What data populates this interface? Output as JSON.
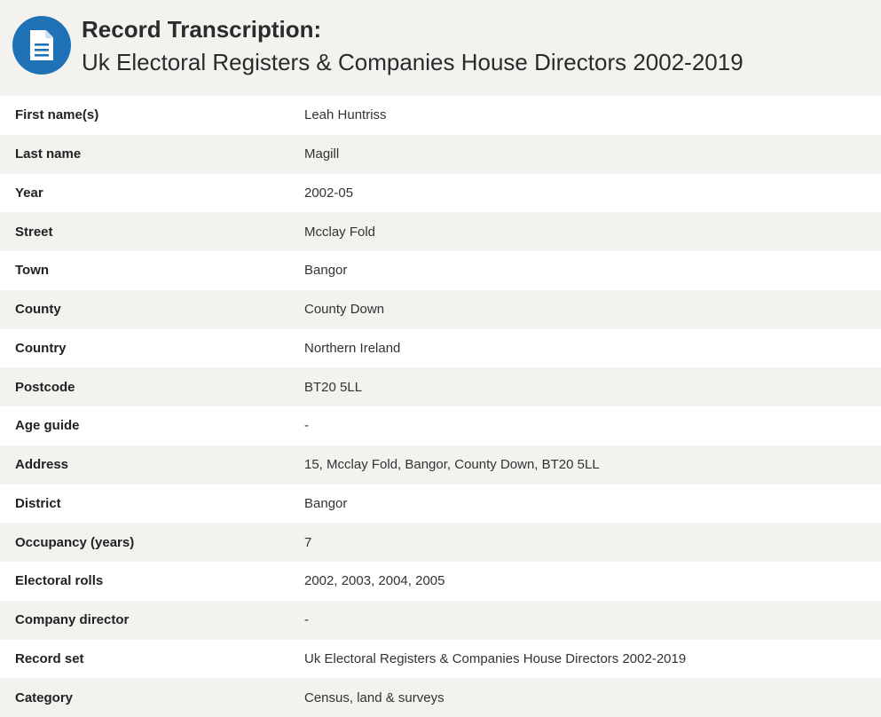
{
  "header": {
    "icon": "document-icon",
    "accent_color": "#1f72b5",
    "title": "Record Transcription:",
    "subtitle": "Uk Electoral Registers & Companies House Directors 2002-2019"
  },
  "record": {
    "rows": [
      {
        "label": "First name(s)",
        "value": "Leah Huntriss"
      },
      {
        "label": "Last name",
        "value": "Magill"
      },
      {
        "label": "Year",
        "value": "2002-05"
      },
      {
        "label": "Street",
        "value": "Mcclay Fold"
      },
      {
        "label": "Town",
        "value": "Bangor"
      },
      {
        "label": "County",
        "value": "County Down"
      },
      {
        "label": "Country",
        "value": "Northern Ireland"
      },
      {
        "label": "Postcode",
        "value": "BT20 5LL"
      },
      {
        "label": "Age guide",
        "value": "-"
      },
      {
        "label": "Address",
        "value": "15, Mcclay Fold, Bangor, County Down, BT20 5LL"
      },
      {
        "label": "District",
        "value": "Bangor"
      },
      {
        "label": "Occupancy (years)",
        "value": "7"
      },
      {
        "label": "Electoral rolls",
        "value": "2002, 2003, 2004, 2005"
      },
      {
        "label": "Company director",
        "value": "-"
      },
      {
        "label": "Record set",
        "value": "Uk Electoral Registers & Companies House Directors 2002-2019"
      },
      {
        "label": "Category",
        "value": "Census, land & surveys"
      }
    ]
  }
}
